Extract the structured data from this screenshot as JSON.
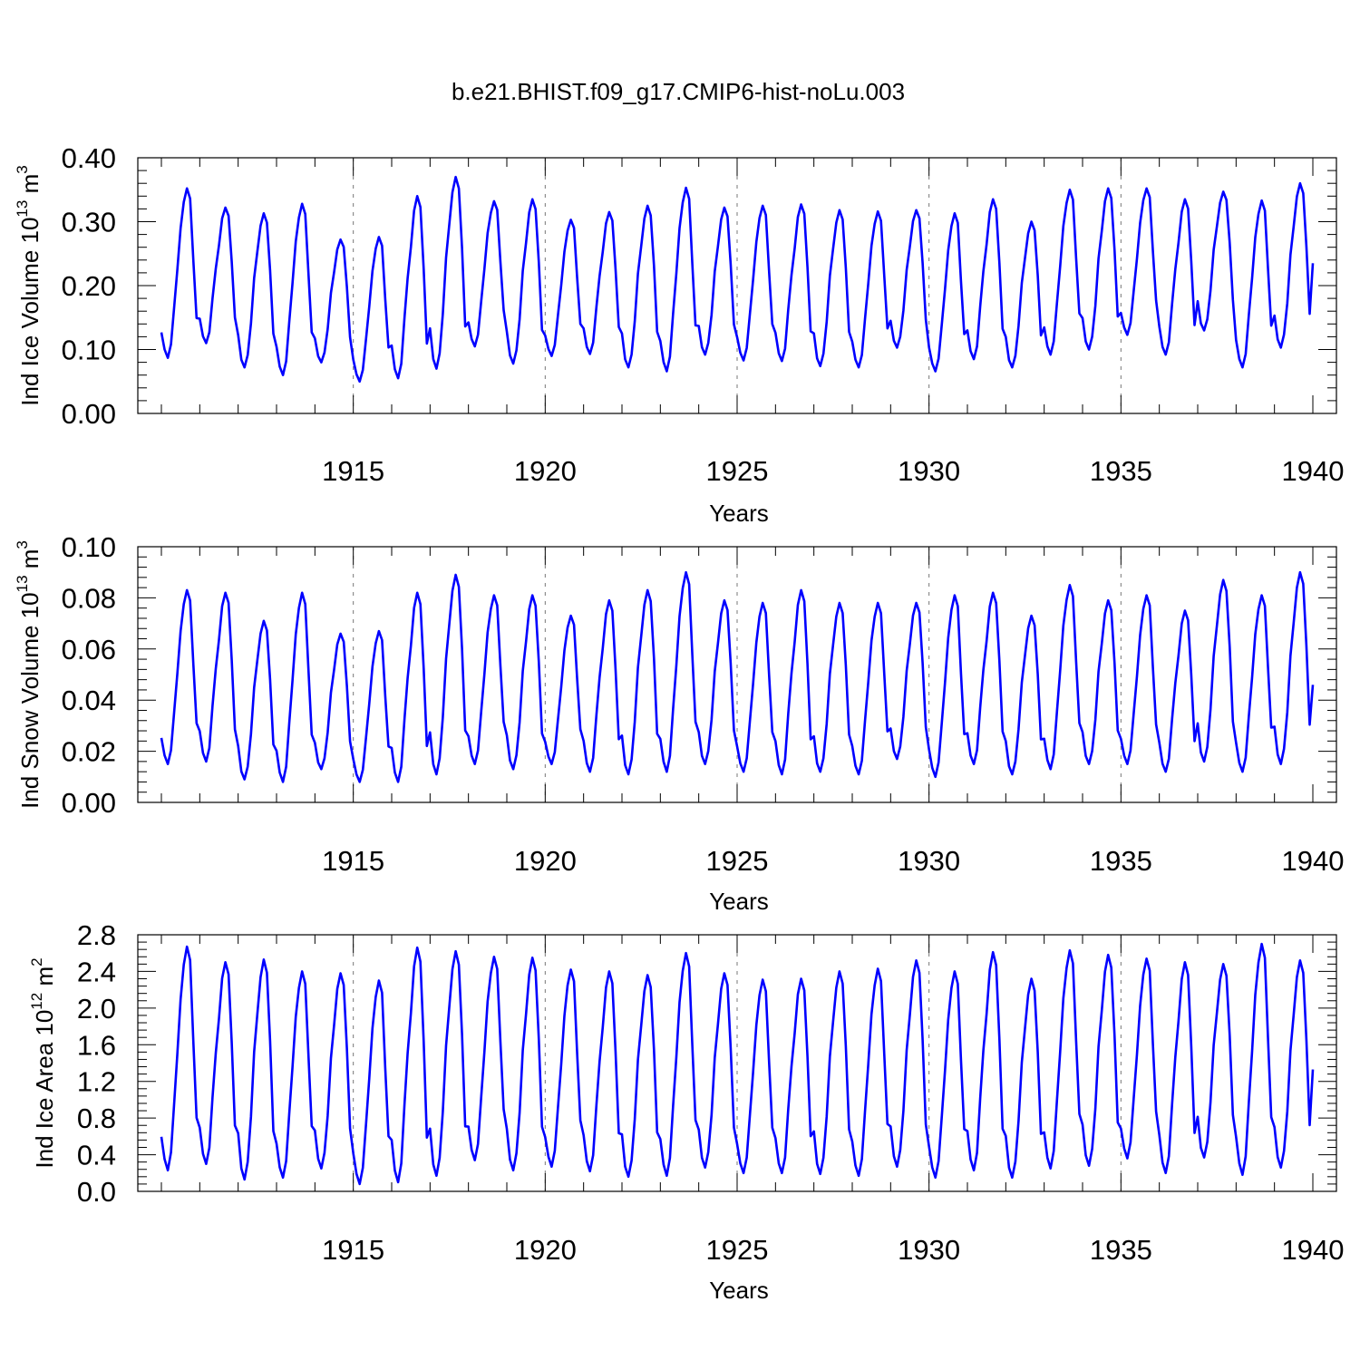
{
  "figure_title": "b.e21.BHIST.f09_g17.CMIP6-hist-noLu.003",
  "chart_data": [
    {
      "type": "line",
      "title": "",
      "xlabel": "Years",
      "ylabel": {
        "prefix": "Ind Ice Volume 10",
        "exponent": "13",
        "unit": " m",
        "unit_exponent": "3"
      },
      "xlim": [
        1910.0,
        1940.0
      ],
      "ylim": [
        0.0,
        0.4
      ],
      "xticks": [
        1915,
        1920,
        1925,
        1930,
        1935,
        1940
      ],
      "yticks": [
        0.0,
        0.1,
        0.2,
        0.3,
        0.4
      ],
      "ytick_labels": [
        "0.00",
        "0.10",
        "0.20",
        "0.30",
        "0.40"
      ],
      "grid": "dashed vertical lines at 5-year marks",
      "series": [
        {
          "name": "Ind Ice Volume",
          "color": "#0000ff",
          "start": 1910.0,
          "step_years": 0.083333,
          "annual_min": [
            0.087,
            0.11,
            0.072,
            0.06,
            0.08,
            0.05,
            0.055,
            0.07,
            0.105,
            0.078,
            0.09,
            0.093,
            0.072,
            0.066,
            0.092,
            0.083,
            0.082,
            0.074,
            0.072,
            0.103,
            0.066,
            0.085,
            0.072,
            0.092,
            0.1,
            0.123,
            0.092,
            0.13,
            0.072,
            0.103
          ],
          "annual_max": [
            0.352,
            0.322,
            0.313,
            0.328,
            0.272,
            0.276,
            0.34,
            0.37,
            0.332,
            0.335,
            0.303,
            0.315,
            0.325,
            0.353,
            0.322,
            0.325,
            0.327,
            0.318,
            0.316,
            0.318,
            0.313,
            0.335,
            0.3,
            0.35,
            0.352,
            0.352,
            0.335,
            0.347,
            0.333,
            0.36
          ],
          "last_value": 0.235
        }
      ]
    },
    {
      "type": "line",
      "title": "",
      "xlabel": "Years",
      "ylabel": {
        "prefix": "Ind Snow Volume 10",
        "exponent": "13",
        "unit": " m",
        "unit_exponent": "3"
      },
      "xlim": [
        1910.0,
        1940.0
      ],
      "ylim": [
        0.0,
        0.1
      ],
      "xticks": [
        1915,
        1920,
        1925,
        1930,
        1935,
        1940
      ],
      "yticks": [
        0.0,
        0.02,
        0.04,
        0.06,
        0.08,
        0.1
      ],
      "ytick_labels": [
        "0.00",
        "0.02",
        "0.04",
        "0.06",
        "0.08",
        "0.10"
      ],
      "grid": "dashed vertical lines at 5-year marks",
      "series": [
        {
          "name": "Ind Snow Volume",
          "color": "#0000ff",
          "start": 1910.0,
          "step_years": 0.083333,
          "annual_min": [
            0.015,
            0.016,
            0.009,
            0.008,
            0.013,
            0.008,
            0.008,
            0.011,
            0.015,
            0.013,
            0.015,
            0.012,
            0.011,
            0.012,
            0.015,
            0.012,
            0.011,
            0.012,
            0.011,
            0.017,
            0.01,
            0.015,
            0.011,
            0.013,
            0.015,
            0.015,
            0.012,
            0.016,
            0.012,
            0.015
          ],
          "annual_max": [
            0.083,
            0.082,
            0.071,
            0.082,
            0.066,
            0.067,
            0.082,
            0.089,
            0.081,
            0.081,
            0.073,
            0.079,
            0.083,
            0.09,
            0.079,
            0.078,
            0.083,
            0.078,
            0.078,
            0.078,
            0.081,
            0.082,
            0.073,
            0.085,
            0.079,
            0.081,
            0.075,
            0.087,
            0.081,
            0.09
          ],
          "last_value": 0.046
        }
      ]
    },
    {
      "type": "line",
      "title": "",
      "xlabel": "Years",
      "ylabel": {
        "prefix": "Ind Ice Area 10",
        "exponent": "12",
        "unit": " m",
        "unit_exponent": "2"
      },
      "xlim": [
        1910.0,
        1940.0
      ],
      "ylim": [
        0.0,
        2.8
      ],
      "xticks": [
        1915,
        1920,
        1925,
        1930,
        1935,
        1940
      ],
      "yticks": [
        0.0,
        0.4,
        0.8,
        1.2,
        1.6,
        2.0,
        2.4,
        2.8
      ],
      "ytick_labels": [
        "0.0",
        "0.4",
        "0.8",
        "1.2",
        "1.6",
        "2.0",
        "2.4",
        "2.8"
      ],
      "grid": "dashed vertical lines at 5-year marks",
      "series": [
        {
          "name": "Ind Ice Area",
          "color": "#0000ff",
          "start": 1910.0,
          "step_years": 0.083333,
          "annual_min": [
            0.23,
            0.3,
            0.13,
            0.15,
            0.25,
            0.08,
            0.1,
            0.17,
            0.34,
            0.23,
            0.27,
            0.22,
            0.16,
            0.17,
            0.26,
            0.2,
            0.2,
            0.19,
            0.17,
            0.27,
            0.15,
            0.23,
            0.15,
            0.25,
            0.28,
            0.36,
            0.2,
            0.37,
            0.18,
            0.26
          ],
          "annual_max": [
            2.67,
            2.5,
            2.53,
            2.4,
            2.38,
            2.3,
            2.66,
            2.62,
            2.56,
            2.55,
            2.42,
            2.4,
            2.36,
            2.6,
            2.38,
            2.31,
            2.32,
            2.4,
            2.43,
            2.52,
            2.4,
            2.61,
            2.32,
            2.63,
            2.58,
            2.54,
            2.5,
            2.48,
            2.7,
            2.52
          ],
          "last_value": 1.33
        }
      ]
    }
  ]
}
